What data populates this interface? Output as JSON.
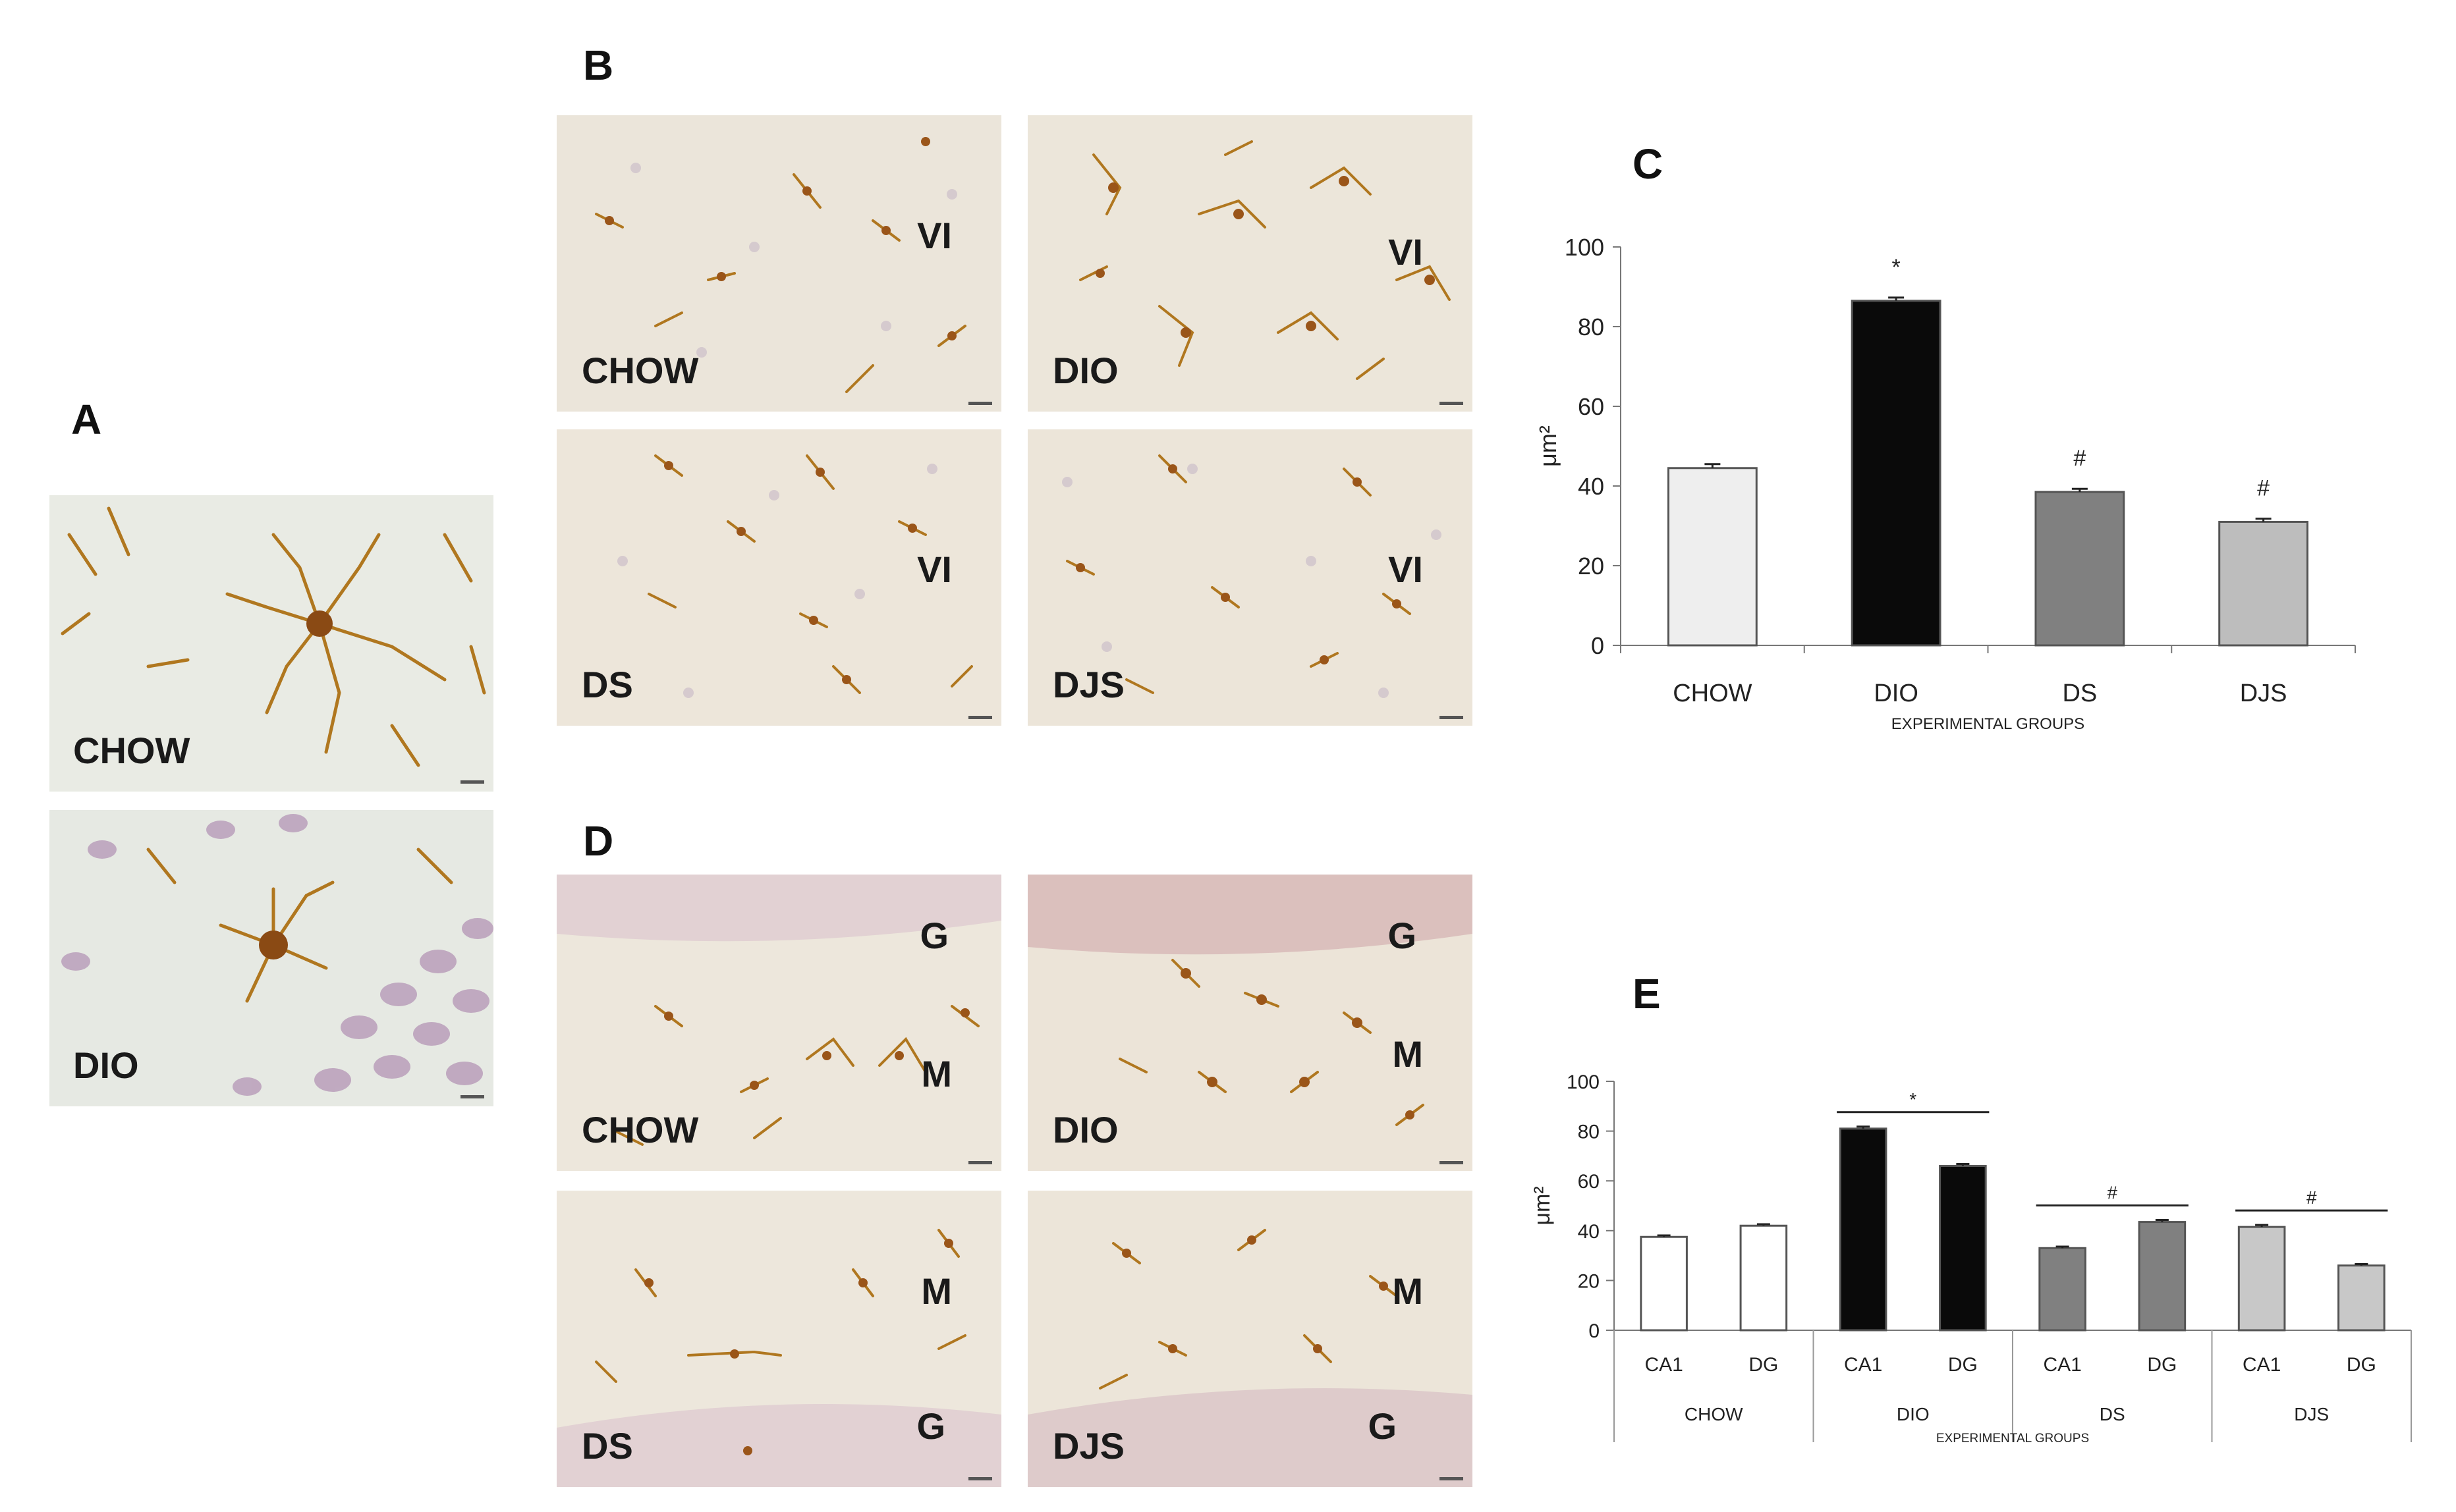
{
  "panels": {
    "A": {
      "letter": "A",
      "images": [
        {
          "label": "CHOW"
        },
        {
          "label": "DIO"
        }
      ]
    },
    "B": {
      "letter": "B",
      "images": [
        {
          "label": "CHOW",
          "region": "VI"
        },
        {
          "label": "DIO",
          "region": "VI"
        },
        {
          "label": "DS",
          "region": "VI"
        },
        {
          "label": "DJS",
          "region": "VI"
        }
      ]
    },
    "D": {
      "letter": "D",
      "images": [
        {
          "label": "CHOW",
          "region1": "G",
          "region2": "M"
        },
        {
          "label": "DIO",
          "region1": "G",
          "region2": "M"
        },
        {
          "label": "DS",
          "region1": "M",
          "region2": "G"
        },
        {
          "label": "DJS",
          "region1": "M",
          "region2": "G"
        }
      ]
    },
    "C": {
      "letter": "C"
    },
    "E": {
      "letter": "E"
    }
  },
  "chart_data": [
    {
      "panel": "C",
      "type": "bar",
      "categories": [
        "CHOW",
        "DIO",
        "DS",
        "DJS"
      ],
      "values": [
        44.5,
        86.5,
        38.5,
        31
      ],
      "errors": [
        1,
        0.8,
        0.8,
        0.8
      ],
      "annotations": [
        "",
        "*",
        "#",
        "#"
      ],
      "bar_colors": [
        "#eeeeee",
        "#0a0a0a",
        "#808080",
        "#bdbdbd"
      ],
      "xlabel": "EXPERIMENTAL GROUPS",
      "ylabel": "μm²",
      "ylim": [
        0,
        100
      ],
      "yticks": [
        0,
        20,
        40,
        60,
        80,
        100
      ],
      "grid": false
    },
    {
      "panel": "E",
      "type": "bar",
      "groups": [
        "CHOW",
        "DIO",
        "DS",
        "DJS"
      ],
      "subcategories": [
        "CA1",
        "DG"
      ],
      "values": [
        [
          37.5,
          42
        ],
        [
          81,
          66
        ],
        [
          33,
          43.5
        ],
        [
          41.5,
          26
        ]
      ],
      "errors": [
        [
          0.6,
          0.6
        ],
        [
          0.8,
          0.8
        ],
        [
          0.6,
          0.8
        ],
        [
          0.8,
          0.6
        ]
      ],
      "group_annotations": [
        "",
        "*",
        "#",
        "#"
      ],
      "bar_colors": [
        "#ffffff",
        "#0a0a0a",
        "#808080",
        "#c8c8c8"
      ],
      "xlabel": "EXPERIMENTAL GROUPS",
      "ylabel": "μm²",
      "ylim": [
        0,
        100
      ],
      "yticks": [
        0,
        20,
        40,
        60,
        80,
        100
      ],
      "grid": false
    }
  ]
}
